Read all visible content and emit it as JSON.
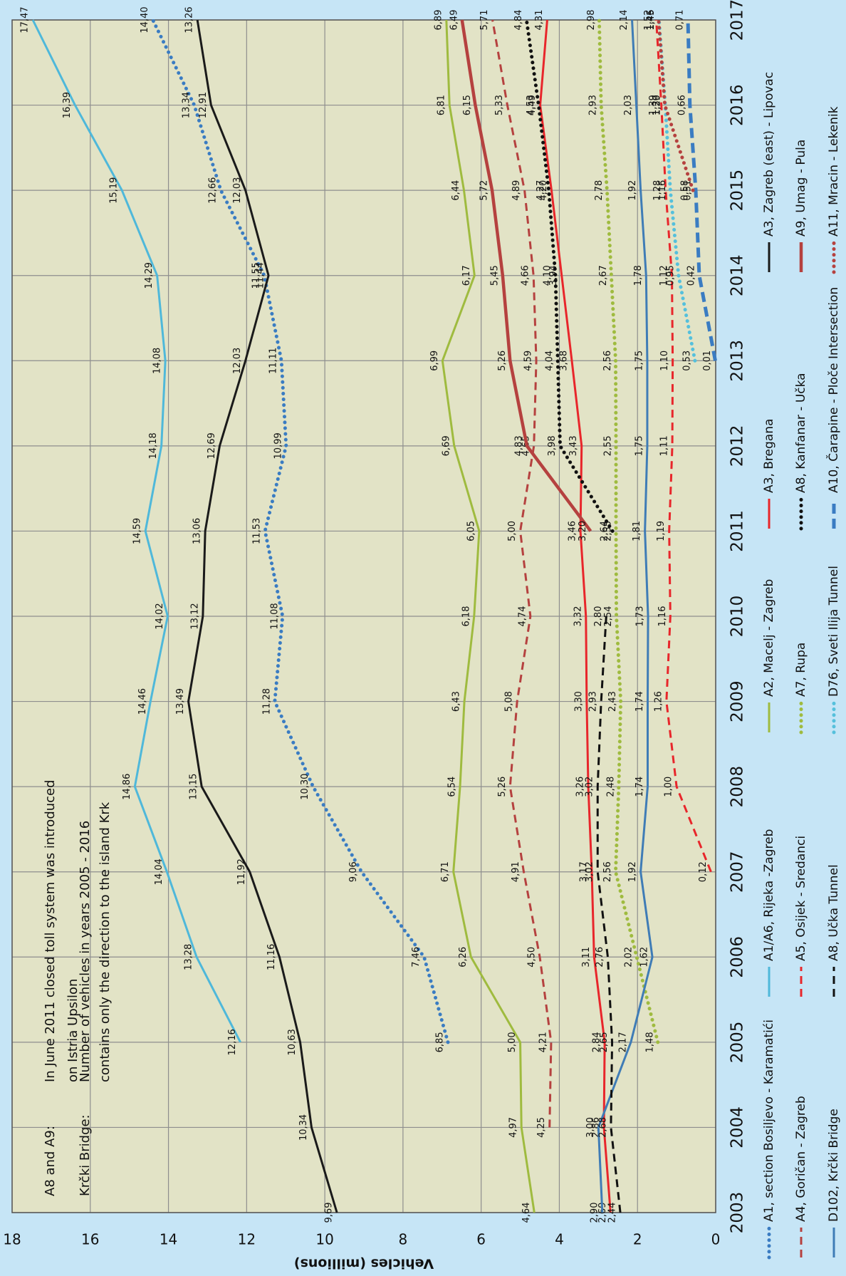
{
  "chart_data": {
    "type": "line",
    "y_label": "Vehicles (millions)",
    "annotations": [
      {
        "label": "A8 and A9:",
        "lines": [
          "In June 2011 closed toll system was introduced",
          "on Istria Upsilon"
        ]
      },
      {
        "label": "Krčki Bridge:",
        "lines": [
          "Number of vehicles in years 2005 - 2016",
          "contains only the direction to the island Krk"
        ]
      }
    ],
    "x": [
      2003,
      2004,
      2005,
      2006,
      2007,
      2008,
      2009,
      2010,
      2011,
      2012,
      2013,
      2014,
      2015,
      2016,
      2017
    ],
    "xlim": [
      2003,
      2017
    ],
    "xticks": [
      2003,
      2004,
      2005,
      2006,
      2007,
      2008,
      2009,
      2010,
      2011,
      2012,
      2013,
      2014,
      2015,
      2016,
      2017
    ],
    "ylim": [
      0,
      18
    ],
    "yticks": [
      0,
      2,
      4,
      6,
      8,
      10,
      12,
      14,
      16,
      18
    ],
    "grid": true,
    "legend": "bottom",
    "series": [
      {
        "name": "A1, section Bosiljevo - Karamatići",
        "color": "#3a7cc2",
        "style": "dotted",
        "values": [
          null,
          null,
          6.85,
          7.46,
          9.06,
          10.3,
          11.28,
          11.08,
          11.53,
          10.99,
          11.11,
          11.55,
          12.66,
          13.34,
          14.4
        ],
        "value_labels": [
          null,
          null,
          "6,85",
          "7,46",
          "9,06",
          "10,30",
          "11,28",
          "11,08",
          "11,53",
          "10,99",
          "11,11",
          "11,55",
          "12,66",
          "13,34",
          "14,40"
        ]
      },
      {
        "name": "A1/A6, Rijeka -Zagreb",
        "color": "#4fb8da",
        "style": "solid",
        "values": [
          null,
          null,
          12.16,
          13.28,
          14.04,
          14.86,
          14.46,
          14.02,
          14.59,
          14.18,
          14.08,
          14.29,
          15.19,
          16.39,
          17.47
        ],
        "value_labels": [
          null,
          null,
          "12,16",
          "13,28",
          "14,04",
          "14,86",
          "14,46",
          "14,02",
          "14,59",
          "14,18",
          "14,08",
          "14,29",
          "15,19",
          "16,39",
          "17,47"
        ]
      },
      {
        "name": "A2, Macelj - Zagreb",
        "color": "#9fbb3f",
        "style": "solid",
        "values": [
          4.64,
          4.97,
          5.0,
          6.26,
          6.71,
          6.54,
          6.43,
          6.18,
          6.05,
          6.69,
          6.99,
          6.17,
          6.44,
          6.81,
          6.89
        ],
        "value_labels": [
          "4,64",
          "4,97",
          "5,00",
          "6,26",
          "6,71",
          "6,54",
          "6,43",
          "6,18",
          "6,05",
          "6,69",
          "6,99",
          "6,17",
          "6,44",
          "6,81",
          "6,89"
        ]
      },
      {
        "name": "A3, Bregana",
        "color": "#e8262b",
        "style": "solid",
        "values": [
          2.69,
          2.86,
          2.84,
          3.11,
          3.17,
          3.26,
          3.3,
          3.32,
          3.46,
          3.43,
          3.68,
          3.94,
          4.2,
          4.49,
          4.31
        ],
        "value_labels": [
          "2,69",
          "2,86",
          "2,84",
          "3,11",
          "3,17",
          "3,26",
          "3,30",
          "3,32",
          "3,46",
          "3,43",
          "3,68",
          "3,94",
          "4,20",
          "4,49",
          "4,31"
        ]
      },
      {
        "name": "A3, Zagreb (east) - Lipovac",
        "color": "#1a1a1a",
        "style": "solid",
        "values": [
          9.69,
          10.34,
          10.63,
          11.16,
          11.92,
          13.15,
          13.49,
          13.12,
          13.06,
          12.69,
          12.03,
          11.44,
          12.03,
          12.91,
          13.26
        ],
        "value_labels": [
          "9,69",
          "10,34",
          "10,63",
          "11,16",
          "11,92",
          "13,15",
          "13,49",
          "13,12",
          "13,06",
          "12,69",
          "12,03",
          "11,44",
          "12,03",
          "12,91",
          "13,26"
        ]
      },
      {
        "name": "A4, Goričan - Zagreb",
        "color": "#b5413f",
        "style": "dashed",
        "values": [
          null,
          4.25,
          4.21,
          4.5,
          4.91,
          5.26,
          5.08,
          4.74,
          5.0,
          4.65,
          4.59,
          4.66,
          4.89,
          5.33,
          5.71
        ],
        "value_labels": [
          null,
          "4,25",
          "4,21",
          "4,50",
          "4,91",
          "5,26",
          "5,08",
          "4,74",
          "5,00",
          "4,65",
          "4,59",
          "4,66",
          "4,89",
          "5,33",
          "5,71"
        ]
      },
      {
        "name": "A5, Osijek - Sredanci",
        "color": "#e8262b",
        "style": "dashed",
        "values": [
          null,
          null,
          null,
          null,
          0.12,
          1.0,
          1.26,
          1.16,
          1.19,
          1.11,
          1.1,
          1.12,
          1.28,
          1.39,
          1.52
        ],
        "value_labels": [
          null,
          null,
          null,
          null,
          "0,12",
          "1,00",
          "1,26",
          "1,16",
          "1,19",
          "1,11",
          "1,10",
          "1,12",
          "1,28",
          "1,39",
          "1,52"
        ]
      },
      {
        "name": "A7, Rupa",
        "color": "#9fbb3f",
        "style": "dotted",
        "values": [
          null,
          null,
          1.48,
          2.02,
          2.56,
          2.48,
          2.43,
          2.54,
          2.55,
          2.55,
          2.56,
          2.67,
          2.78,
          2.93,
          2.98
        ],
        "value_labels": [
          null,
          null,
          "1,48",
          "2,02",
          "2,56",
          "2,48",
          "2,43",
          "2,54",
          "2,55",
          "2,55",
          "2,56",
          "2,67",
          "2,78",
          "2,93",
          "2,98"
        ]
      },
      {
        "name": "A8, Kanfanar - Učka",
        "color": "#111111",
        "style": "dotted",
        "values": [
          null,
          null,
          null,
          null,
          null,
          null,
          null,
          null,
          2.64,
          3.98,
          4.04,
          4.1,
          4.27,
          4.53,
          4.84
        ],
        "value_labels": [
          null,
          null,
          null,
          null,
          null,
          null,
          null,
          null,
          "2,64",
          "3,98",
          "4,04",
          "4,10",
          "4,27",
          "4,53",
          "4,84"
        ]
      },
      {
        "name": "A9, Umag - Pula",
        "color": "#b5413f",
        "style": "thick",
        "values": [
          null,
          null,
          null,
          null,
          null,
          null,
          null,
          null,
          3.2,
          4.83,
          5.26,
          5.45,
          5.72,
          6.15,
          6.49
        ],
        "value_labels": [
          null,
          null,
          null,
          null,
          null,
          null,
          null,
          null,
          "3,20",
          "4,83",
          "5,26",
          "5,45",
          "5,72",
          "6,15",
          "6,49"
        ]
      },
      {
        "name": "D102, Krčki Bridge",
        "color": "#3f7cb6",
        "style": "solid",
        "values": [
          2.9,
          3.0,
          2.17,
          1.62,
          1.92,
          1.74,
          1.74,
          1.73,
          1.81,
          1.75,
          1.75,
          1.78,
          1.92,
          2.03,
          2.14
        ],
        "value_labels": [
          "2,90",
          "3,00",
          "2,17",
          "1,62",
          "1,92",
          "1,74",
          "1,74",
          "1,73",
          "1,81",
          "1,75",
          "1,75",
          "1,78",
          "1,92",
          "2,03",
          "2,14"
        ]
      },
      {
        "name": "A8, Učka Tunnel",
        "color": "#111111",
        "style": "dashed",
        "values": [
          2.44,
          2.68,
          2.65,
          2.76,
          3.02,
          3.02,
          2.93,
          2.8,
          null,
          null,
          null,
          null,
          null,
          null,
          null
        ],
        "value_labels": [
          "2,44",
          "2,68",
          "2,65",
          "2,76",
          "3,02",
          "3,02",
          "2,93",
          "2,80",
          null,
          null,
          null,
          null,
          null,
          null,
          null
        ]
      },
      {
        "name": "D76, Sveti Ilija Tunnel",
        "color": "#55c0dc",
        "style": "dotted",
        "values": [
          null,
          null,
          null,
          null,
          null,
          null,
          null,
          null,
          null,
          null,
          0.53,
          0.95,
          1.16,
          1.29,
          1.45
        ],
        "value_labels": [
          null,
          null,
          null,
          null,
          null,
          null,
          null,
          null,
          null,
          null,
          "0,53",
          "0,95",
          "1,16",
          "1,29",
          "1,45"
        ]
      },
      {
        "name": "A10, Čarapine - Ploče Intersection",
        "color": "#3a7cc2",
        "style": "dashed-thick",
        "values": [
          null,
          null,
          null,
          null,
          null,
          null,
          null,
          null,
          null,
          null,
          0.01,
          0.42,
          0.51,
          0.66,
          0.71
        ],
        "value_labels": [
          null,
          null,
          null,
          null,
          null,
          null,
          null,
          null,
          null,
          null,
          "0,01",
          "0,42",
          "0,51",
          "0,66",
          "0,71"
        ]
      },
      {
        "name": "A11, Mracin - Lekenik",
        "color": "#b5413f",
        "style": "dotted",
        "values": [
          null,
          null,
          null,
          null,
          null,
          null,
          null,
          null,
          null,
          null,
          null,
          null,
          0.58,
          1.3,
          1.46
        ],
        "value_labels": [
          null,
          null,
          null,
          null,
          null,
          null,
          null,
          null,
          null,
          null,
          null,
          null,
          "0,58",
          "1,30",
          "1,46"
        ]
      }
    ]
  }
}
